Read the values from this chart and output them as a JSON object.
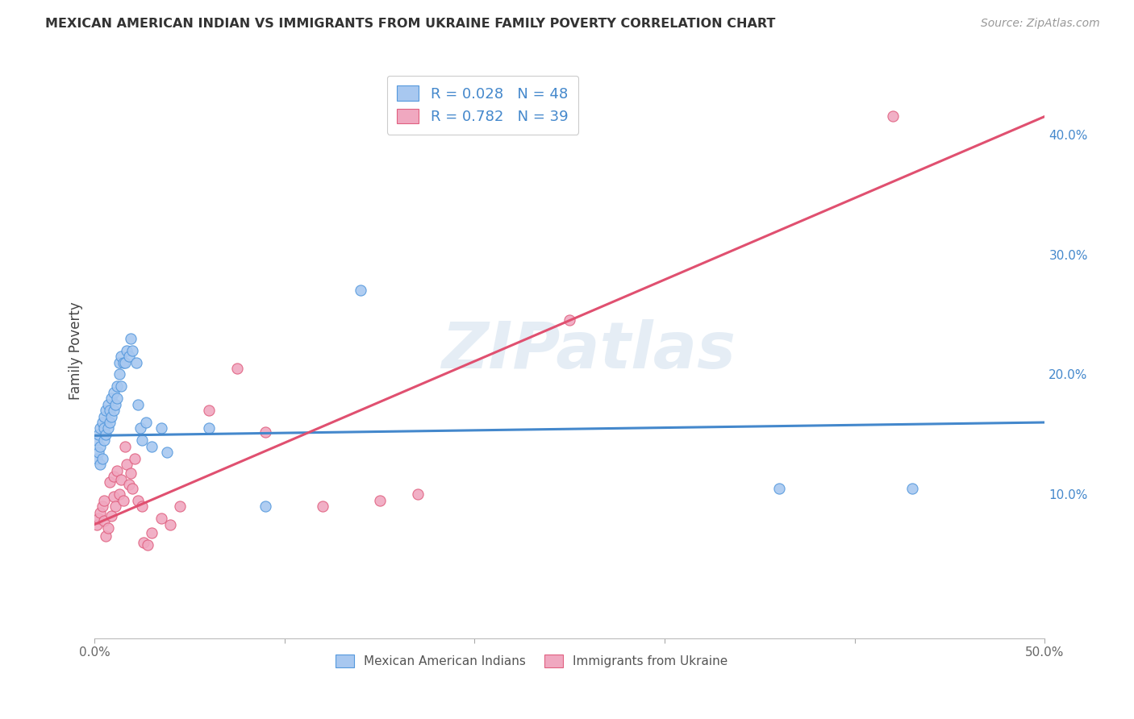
{
  "title": "MEXICAN AMERICAN INDIAN VS IMMIGRANTS FROM UKRAINE FAMILY POVERTY CORRELATION CHART",
  "source": "Source: ZipAtlas.com",
  "ylabel": "Family Poverty",
  "xlim": [
    0.0,
    0.5
  ],
  "ylim": [
    -0.02,
    0.46
  ],
  "xtick_positions": [
    0.0,
    0.1,
    0.2,
    0.3,
    0.4,
    0.5
  ],
  "xtick_labels": [
    "0.0%",
    "",
    "",
    "",
    "",
    "50.0%"
  ],
  "ytick_labels": [
    "10.0%",
    "20.0%",
    "30.0%",
    "40.0%"
  ],
  "ytick_positions": [
    0.1,
    0.2,
    0.3,
    0.4
  ],
  "blue_fill": "#a8c8f0",
  "pink_fill": "#f0a8c0",
  "blue_edge": "#5599dd",
  "pink_edge": "#e06080",
  "blue_line_color": "#4488cc",
  "pink_line_color": "#e05070",
  "watermark": "ZIPatlas",
  "legend_label_blue": "Mexican American Indians",
  "legend_label_pink": "Immigrants from Ukraine",
  "background_color": "#ffffff",
  "grid_color": "#cccccc",
  "blue_r": "0.028",
  "blue_n": "48",
  "pink_r": "0.782",
  "pink_n": "39",
  "blue_line_x": [
    0.0,
    0.5
  ],
  "blue_line_y": [
    0.149,
    0.16
  ],
  "pink_line_x": [
    0.0,
    0.5
  ],
  "pink_line_y": [
    0.075,
    0.415
  ],
  "blue_scatter_x": [
    0.001,
    0.001,
    0.002,
    0.002,
    0.003,
    0.003,
    0.003,
    0.004,
    0.004,
    0.005,
    0.005,
    0.005,
    0.006,
    0.006,
    0.007,
    0.007,
    0.008,
    0.008,
    0.009,
    0.009,
    0.01,
    0.01,
    0.011,
    0.012,
    0.012,
    0.013,
    0.013,
    0.014,
    0.014,
    0.015,
    0.016,
    0.017,
    0.018,
    0.019,
    0.02,
    0.022,
    0.023,
    0.024,
    0.025,
    0.027,
    0.03,
    0.035,
    0.038,
    0.06,
    0.09,
    0.14,
    0.36,
    0.43
  ],
  "blue_scatter_y": [
    0.13,
    0.145,
    0.135,
    0.15,
    0.14,
    0.155,
    0.125,
    0.16,
    0.13,
    0.155,
    0.145,
    0.165,
    0.15,
    0.17,
    0.155,
    0.175,
    0.16,
    0.17,
    0.165,
    0.18,
    0.17,
    0.185,
    0.175,
    0.19,
    0.18,
    0.21,
    0.2,
    0.215,
    0.19,
    0.21,
    0.21,
    0.22,
    0.215,
    0.23,
    0.22,
    0.21,
    0.175,
    0.155,
    0.145,
    0.16,
    0.14,
    0.155,
    0.135,
    0.155,
    0.09,
    0.27,
    0.105,
    0.105
  ],
  "pink_scatter_x": [
    0.001,
    0.002,
    0.003,
    0.004,
    0.005,
    0.005,
    0.006,
    0.007,
    0.008,
    0.009,
    0.01,
    0.01,
    0.011,
    0.012,
    0.013,
    0.014,
    0.015,
    0.016,
    0.017,
    0.018,
    0.019,
    0.02,
    0.021,
    0.023,
    0.025,
    0.026,
    0.028,
    0.03,
    0.035,
    0.04,
    0.045,
    0.06,
    0.075,
    0.09,
    0.12,
    0.15,
    0.17,
    0.25,
    0.42
  ],
  "pink_scatter_y": [
    0.075,
    0.08,
    0.085,
    0.09,
    0.078,
    0.095,
    0.065,
    0.072,
    0.11,
    0.082,
    0.098,
    0.115,
    0.09,
    0.12,
    0.1,
    0.112,
    0.095,
    0.14,
    0.125,
    0.108,
    0.118,
    0.105,
    0.13,
    0.095,
    0.09,
    0.06,
    0.058,
    0.068,
    0.08,
    0.075,
    0.09,
    0.17,
    0.205,
    0.152,
    0.09,
    0.095,
    0.1,
    0.245,
    0.415
  ]
}
